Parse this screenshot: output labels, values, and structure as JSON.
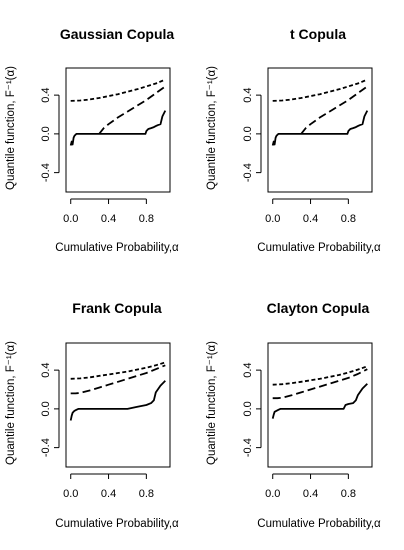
{
  "chart_data": [
    {
      "type": "line",
      "title": "Gaussian Copula",
      "xlabel": "Cumulative Probability,α",
      "ylabel": "Quantile function, F⁻¹(α)",
      "xlim": [
        -0.05,
        1.05
      ],
      "ylim": [
        -0.6,
        0.68
      ],
      "xticks": [
        0.0,
        0.4,
        0.8
      ],
      "xtick_labels": [
        "0.0",
        "0.4",
        "0.8"
      ],
      "yticks": [
        -0.4,
        0.0,
        0.4
      ],
      "ytick_labels": [
        "-0.4",
        "0.0",
        "0.4"
      ],
      "grid": false,
      "series": [
        {
          "style": "dotted",
          "x": [
            0.0,
            0.1,
            0.2,
            0.3,
            0.4,
            0.5,
            0.6,
            0.7,
            0.8,
            0.9,
            1.0
          ],
          "y": [
            0.34,
            0.345,
            0.355,
            0.37,
            0.39,
            0.41,
            0.435,
            0.46,
            0.49,
            0.52,
            0.56
          ]
        },
        {
          "style": "dashed",
          "x": [
            0.3,
            0.35,
            0.4,
            0.5,
            0.6,
            0.7,
            0.8,
            0.9,
            1.0
          ],
          "y": [
            0.0,
            0.06,
            0.1,
            0.17,
            0.23,
            0.29,
            0.35,
            0.42,
            0.49
          ]
        },
        {
          "style": "solid",
          "x": [
            0.0,
            0.01,
            0.02,
            0.03,
            0.04,
            0.05,
            0.06,
            0.2,
            0.4,
            0.6,
            0.79,
            0.8,
            0.82,
            0.85,
            0.88,
            0.9,
            0.92,
            0.95,
            0.97,
            1.0
          ],
          "y": [
            -0.12,
            -0.08,
            -0.11,
            -0.04,
            -0.02,
            -0.01,
            0.0,
            0.0,
            0.0,
            0.0,
            0.0,
            0.03,
            0.05,
            0.06,
            0.07,
            0.08,
            0.09,
            0.1,
            0.18,
            0.24
          ]
        }
      ]
    },
    {
      "type": "line",
      "title": "t Copula",
      "xlabel": "Cumulative Probability,α",
      "ylabel": "Quantile function, F⁻¹(α)",
      "xlim": [
        -0.05,
        1.05
      ],
      "ylim": [
        -0.6,
        0.68
      ],
      "xticks": [
        0.0,
        0.4,
        0.8
      ],
      "xtick_labels": [
        "0.0",
        "0.4",
        "0.8"
      ],
      "yticks": [
        -0.4,
        0.0,
        0.4
      ],
      "ytick_labels": [
        "-0.4",
        "0.0",
        "0.4"
      ],
      "grid": false,
      "series": [
        {
          "style": "dotted",
          "x": [
            0.0,
            0.1,
            0.2,
            0.3,
            0.4,
            0.5,
            0.6,
            0.7,
            0.8,
            0.9,
            1.0
          ],
          "y": [
            0.34,
            0.345,
            0.355,
            0.37,
            0.39,
            0.41,
            0.435,
            0.46,
            0.49,
            0.52,
            0.56
          ]
        },
        {
          "style": "dashed",
          "x": [
            0.3,
            0.35,
            0.4,
            0.5,
            0.6,
            0.7,
            0.8,
            0.9,
            1.0
          ],
          "y": [
            0.0,
            0.06,
            0.1,
            0.17,
            0.23,
            0.29,
            0.35,
            0.42,
            0.49
          ]
        },
        {
          "style": "solid",
          "x": [
            0.0,
            0.01,
            0.02,
            0.03,
            0.04,
            0.05,
            0.06,
            0.2,
            0.4,
            0.6,
            0.79,
            0.8,
            0.82,
            0.85,
            0.88,
            0.9,
            0.92,
            0.95,
            0.97,
            1.0
          ],
          "y": [
            -0.12,
            -0.08,
            -0.11,
            -0.04,
            -0.02,
            -0.01,
            0.0,
            0.0,
            0.0,
            0.0,
            0.0,
            0.03,
            0.05,
            0.06,
            0.07,
            0.08,
            0.09,
            0.1,
            0.18,
            0.24
          ]
        }
      ]
    },
    {
      "type": "line",
      "title": "Frank Copula",
      "xlabel": "Cumulative Probability,α",
      "ylabel": "Quantile function, F⁻¹(α)",
      "xlim": [
        -0.05,
        1.05
      ],
      "ylim": [
        -0.6,
        0.68
      ],
      "xticks": [
        0.0,
        0.4,
        0.8
      ],
      "xtick_labels": [
        "0.0",
        "0.4",
        "0.8"
      ],
      "yticks": [
        -0.4,
        0.0,
        0.4
      ],
      "ytick_labels": [
        "-0.4",
        "0.0",
        "0.4"
      ],
      "grid": false,
      "series": [
        {
          "style": "dotted",
          "x": [
            0.0,
            0.1,
            0.2,
            0.3,
            0.4,
            0.5,
            0.6,
            0.7,
            0.8,
            0.9,
            1.0
          ],
          "y": [
            0.31,
            0.315,
            0.325,
            0.34,
            0.355,
            0.37,
            0.385,
            0.405,
            0.425,
            0.45,
            0.48
          ]
        },
        {
          "style": "dashed",
          "x": [
            0.0,
            0.05,
            0.1,
            0.2,
            0.3,
            0.4,
            0.5,
            0.6,
            0.7,
            0.8,
            0.9,
            1.0
          ],
          "y": [
            0.16,
            0.16,
            0.165,
            0.19,
            0.22,
            0.25,
            0.28,
            0.31,
            0.34,
            0.37,
            0.41,
            0.45
          ]
        },
        {
          "style": "solid",
          "x": [
            0.0,
            0.01,
            0.02,
            0.04,
            0.06,
            0.08,
            0.1,
            0.2,
            0.4,
            0.6,
            0.7,
            0.8,
            0.85,
            0.88,
            0.9,
            0.95,
            1.0
          ],
          "y": [
            -0.12,
            -0.07,
            -0.04,
            -0.02,
            -0.01,
            0.0,
            0.0,
            0.0,
            0.0,
            0.0,
            0.02,
            0.04,
            0.06,
            0.09,
            0.17,
            0.24,
            0.29
          ]
        }
      ]
    },
    {
      "type": "line",
      "title": "Clayton Copula",
      "xlabel": "Cumulative Probability,α",
      "ylabel": "Quantile function, F⁻¹(α)",
      "xlim": [
        -0.05,
        1.05
      ],
      "ylim": [
        -0.6,
        0.68
      ],
      "xticks": [
        0.0,
        0.4,
        0.8
      ],
      "xtick_labels": [
        "0.0",
        "0.4",
        "0.8"
      ],
      "yticks": [
        -0.4,
        0.0,
        0.4
      ],
      "ytick_labels": [
        "-0.4",
        "0.0",
        "0.4"
      ],
      "grid": false,
      "series": [
        {
          "style": "dotted",
          "x": [
            0.0,
            0.1,
            0.2,
            0.3,
            0.4,
            0.5,
            0.6,
            0.7,
            0.8,
            0.9,
            1.0
          ],
          "y": [
            0.25,
            0.255,
            0.265,
            0.28,
            0.295,
            0.31,
            0.33,
            0.35,
            0.375,
            0.405,
            0.44
          ]
        },
        {
          "style": "dashed",
          "x": [
            0.0,
            0.05,
            0.1,
            0.2,
            0.3,
            0.4,
            0.5,
            0.6,
            0.7,
            0.8,
            0.9,
            1.0
          ],
          "y": [
            0.11,
            0.11,
            0.115,
            0.14,
            0.17,
            0.2,
            0.23,
            0.26,
            0.29,
            0.32,
            0.36,
            0.41
          ]
        },
        {
          "style": "solid",
          "x": [
            0.0,
            0.01,
            0.02,
            0.04,
            0.06,
            0.08,
            0.1,
            0.2,
            0.4,
            0.6,
            0.75,
            0.77,
            0.8,
            0.85,
            0.88,
            0.9,
            0.95,
            1.0
          ],
          "y": [
            -0.1,
            -0.06,
            -0.03,
            -0.02,
            -0.01,
            0.0,
            0.0,
            0.0,
            0.0,
            0.0,
            0.0,
            0.04,
            0.05,
            0.06,
            0.09,
            0.14,
            0.21,
            0.26
          ]
        }
      ]
    }
  ]
}
